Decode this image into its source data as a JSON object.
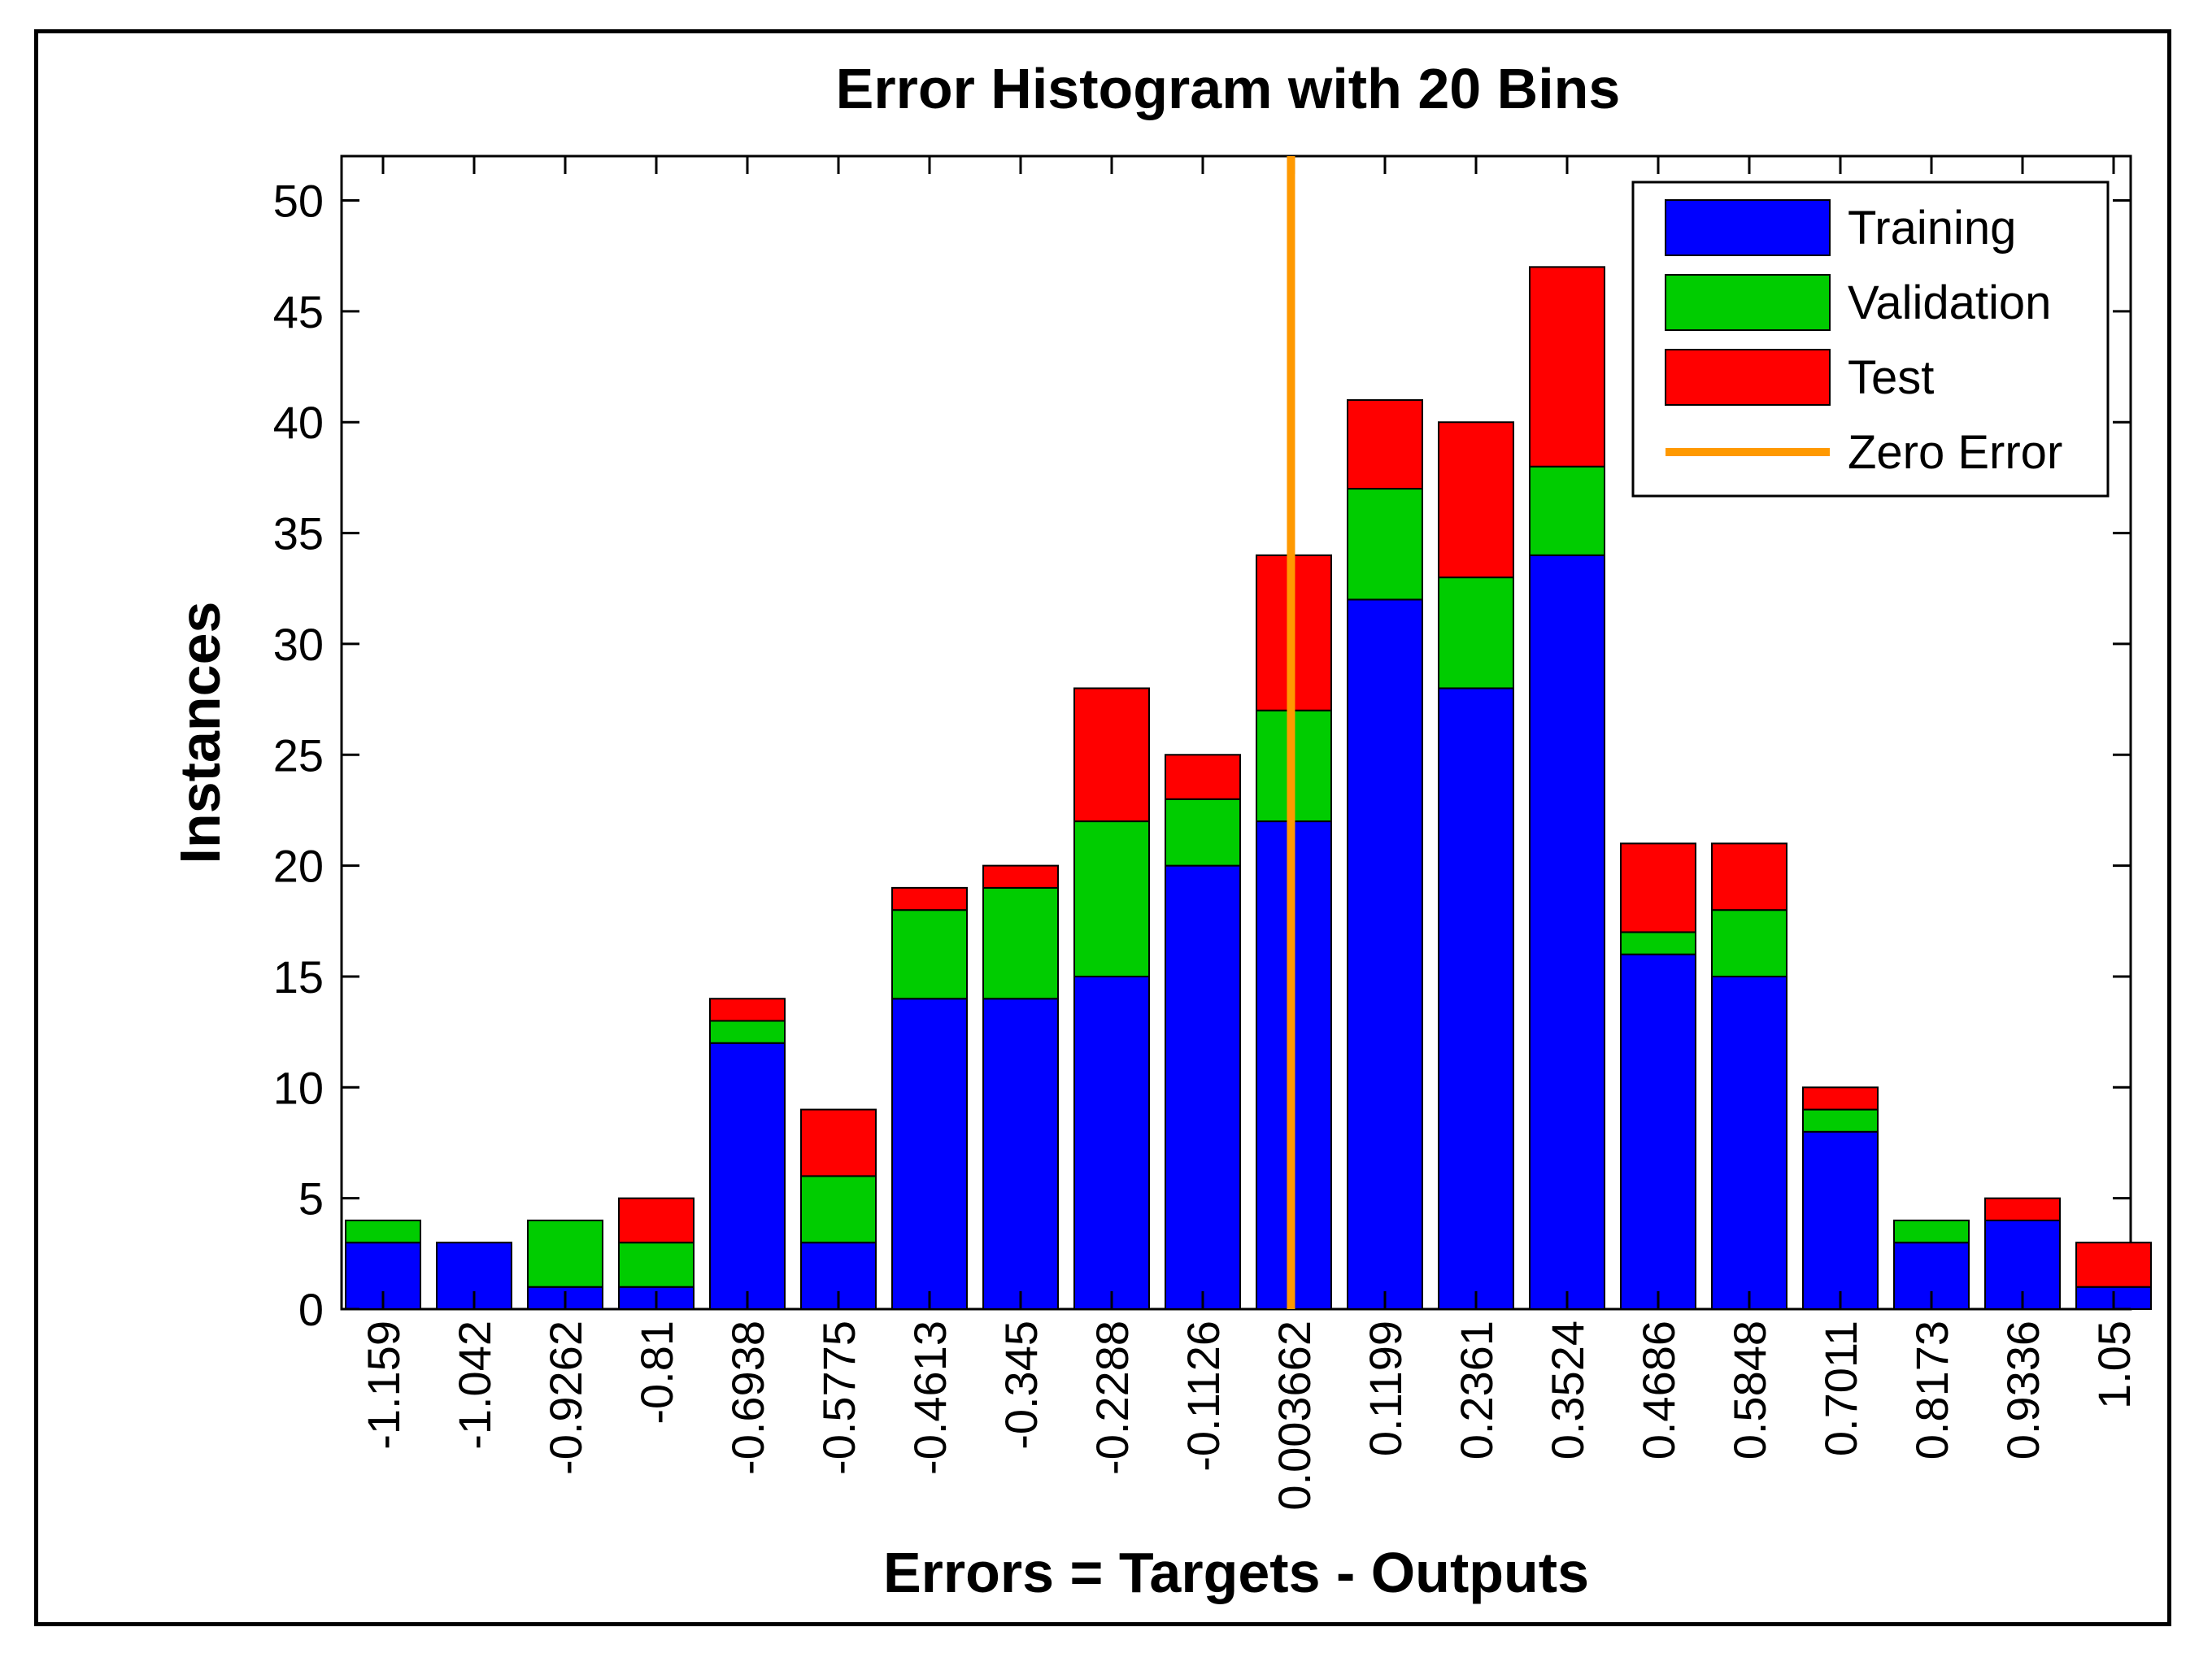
{
  "chart_data": {
    "type": "bar",
    "stacked": true,
    "title": "Error Histogram with 20 Bins",
    "xlabel": "Errors = Targets - Outputs",
    "ylabel": "Instances",
    "ylim": [
      0,
      52
    ],
    "yticks": [
      0,
      5,
      10,
      15,
      20,
      25,
      30,
      35,
      40,
      45,
      50
    ],
    "categories": [
      "-1.159",
      "-1.042",
      "-0.9262",
      "-0.81",
      "-0.6938",
      "-0.5775",
      "-0.4613",
      "-0.345",
      "-0.2288",
      "-0.1126",
      "0.003662",
      "0.1199",
      "0.2361",
      "0.3524",
      "0.4686",
      "0.5848",
      "0.7011",
      "0.8173",
      "0.9336",
      "1.05"
    ],
    "series": [
      {
        "name": "Training",
        "color": "#0000ff",
        "values": [
          3,
          3,
          1,
          1,
          12,
          3,
          14,
          14,
          15,
          20,
          22,
          32,
          28,
          34,
          16,
          15,
          8,
          3,
          4,
          1
        ]
      },
      {
        "name": "Validation",
        "color": "#00cc00",
        "values": [
          1,
          0,
          3,
          2,
          1,
          3,
          4,
          5,
          7,
          3,
          5,
          5,
          5,
          4,
          1,
          3,
          1,
          1,
          0,
          0
        ]
      },
      {
        "name": "Test",
        "color": "#ff0000",
        "values": [
          0,
          0,
          0,
          2,
          1,
          3,
          1,
          1,
          6,
          2,
          7,
          4,
          7,
          9,
          4,
          3,
          1,
          0,
          1,
          2
        ]
      }
    ],
    "reference_line": {
      "name": "Zero Error",
      "x": 0,
      "color": "#ff9900"
    },
    "legend_position": "top-right",
    "grid": false
  }
}
